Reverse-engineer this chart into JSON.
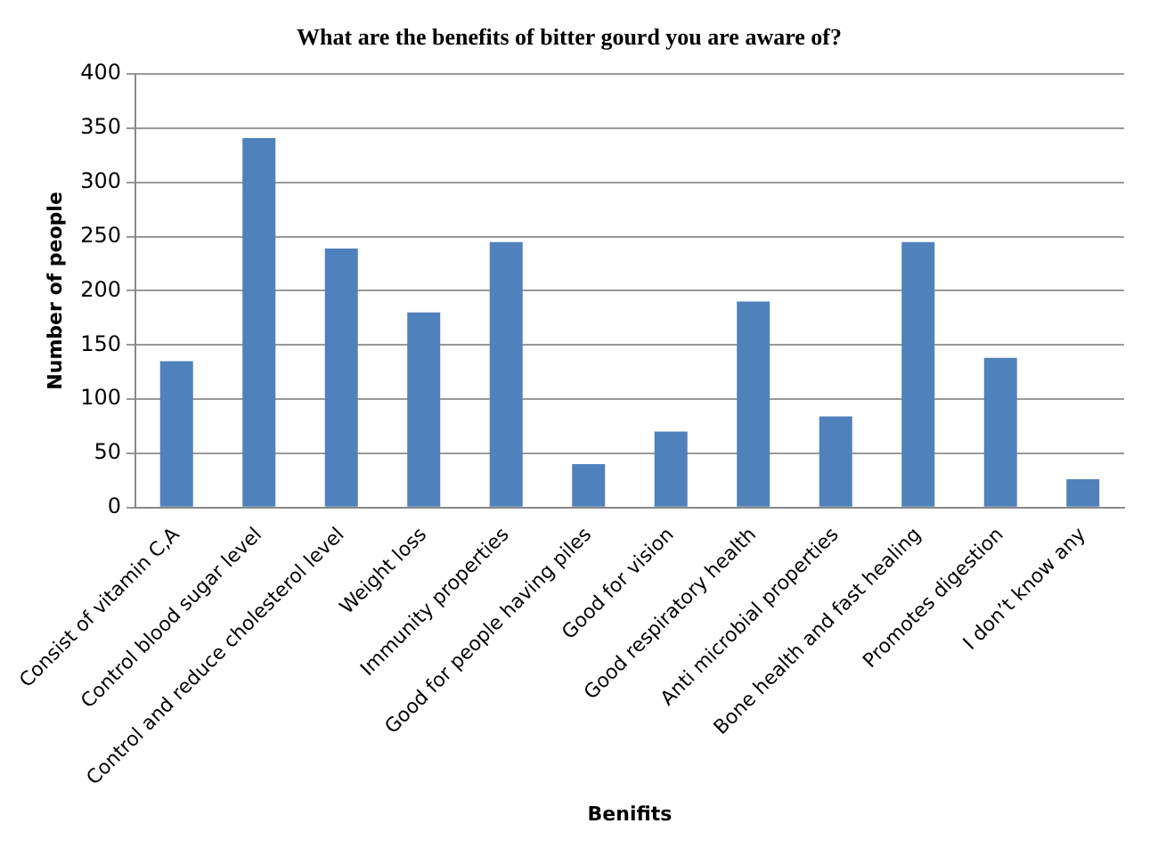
{
  "chart_data": {
    "type": "bar",
    "title": "What are the benefits of bitter gourd you are aware of?",
    "xlabel": "Benifits",
    "ylabel": "Number of people",
    "categories": [
      "Consist of vitamin C,A",
      "Control blood sugar level",
      "Control and reduce cholesterol level",
      "Weight loss",
      "Immunity properties",
      "Good for people having piles",
      "Good for vision",
      "Good respiratory health",
      "Anti microbial properties",
      "Bone health and fast healing",
      "Promotes digestion",
      "I don’t know any"
    ],
    "values": [
      135,
      341,
      239,
      180,
      245,
      40,
      70,
      190,
      84,
      245,
      138,
      26
    ],
    "color": "#4f81bd",
    "ylim": [
      0,
      400
    ],
    "yticks": [
      0,
      50,
      100,
      150,
      200,
      250,
      300,
      350,
      400
    ],
    "grid": "y",
    "legend": false
  }
}
